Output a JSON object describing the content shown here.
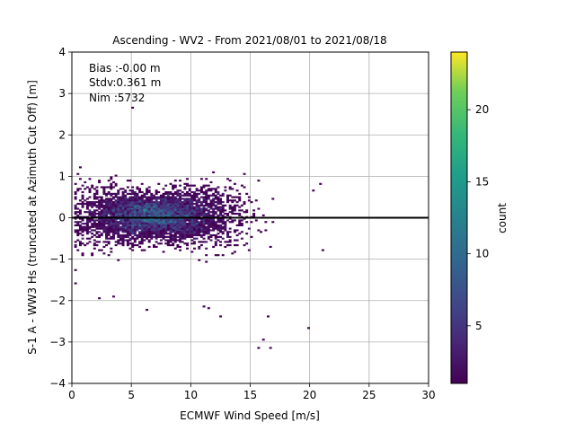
{
  "chart_data": {
    "type": "heatmap",
    "title": "Ascending - WV2 - From 2021/08/01 to 2021/08/18",
    "xlabel": "ECMWF Wind Speed [m/s]",
    "ylabel": "S-1 A - WW3 Hs (truncated at Azimuth Cut Off) [m]",
    "xlim": [
      0,
      30
    ],
    "ylim": [
      -4,
      4
    ],
    "xticks": [
      "0",
      "5",
      "10",
      "15",
      "20",
      "25",
      "30"
    ],
    "yticks": [
      "-4",
      "-3",
      "-2",
      "-1",
      "0",
      "1",
      "2",
      "3",
      "4"
    ],
    "grid": true,
    "colormap": "viridis",
    "colorbar": {
      "label": "count",
      "range": [
        1,
        24
      ],
      "ticks": [
        "5",
        "10",
        "15",
        "20"
      ]
    },
    "reference_line": {
      "y": 0,
      "color": "#000000"
    },
    "annotation": [
      "Bias :-0.00 m",
      "Stdv:0.361 m",
      "Nim :5732"
    ],
    "stats": {
      "bias_m": -0.0,
      "stdv_m": 0.361,
      "n": 5732
    },
    "density_core": {
      "x_center": 7.0,
      "y_center": 0.05,
      "max_count": 24
    },
    "outliers": [
      [
        5.0,
        2.65
      ],
      [
        16.2,
        -2.95
      ],
      [
        16.7,
        -3.15
      ],
      [
        15.7,
        -3.15
      ],
      [
        19.8,
        -2.68
      ],
      [
        16.5,
        -2.4
      ],
      [
        12.5,
        -2.4
      ],
      [
        11.5,
        -2.2
      ],
      [
        11.0,
        -2.15
      ],
      [
        6.3,
        -2.22
      ],
      [
        2.4,
        -1.95
      ],
      [
        3.5,
        -1.9
      ],
      [
        0.3,
        -1.6
      ],
      [
        20.8,
        0.8
      ],
      [
        20.3,
        0.65
      ],
      [
        21.2,
        -0.8
      ],
      [
        0.5,
        1.05
      ]
    ]
  }
}
